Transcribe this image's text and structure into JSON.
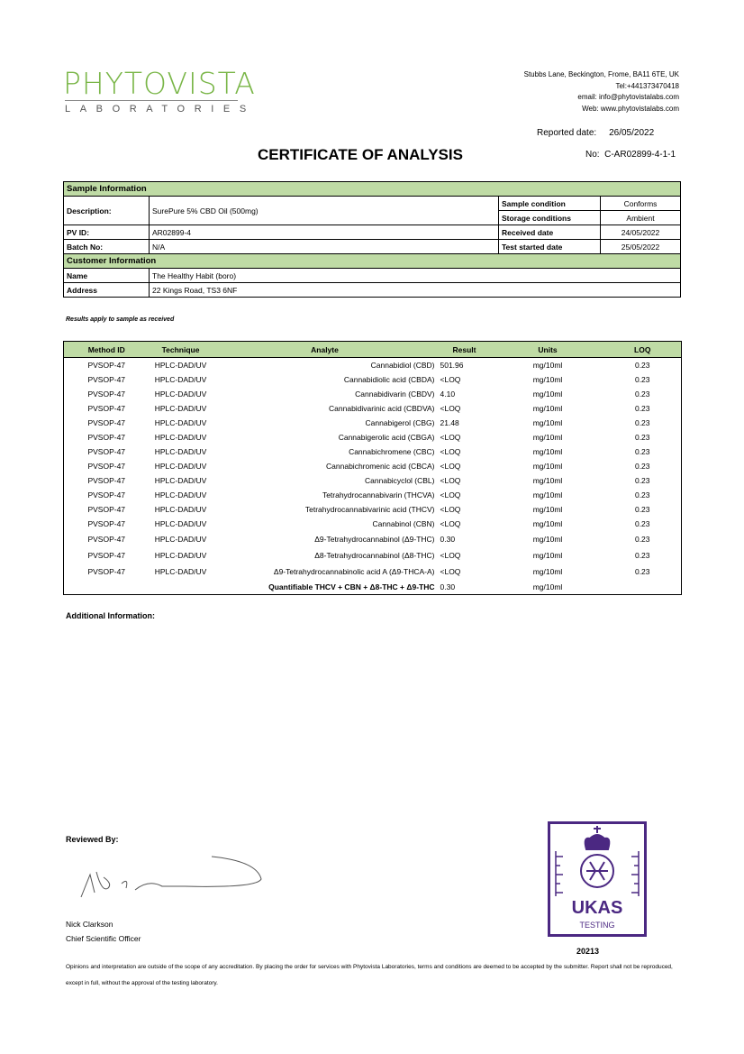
{
  "header": {
    "logo_main": "PHYTOVISTA",
    "logo_sub": "LABORATORIES",
    "address": [
      "Stubbs Lane, Beckington, Frome, BA11 6TE, UK",
      "Tel:+441373470418",
      "email: info@phytovistalabs.com",
      "Web: www.phytovistalabs.com"
    ],
    "reported_label": "Reported date:",
    "reported_date": "26/05/2022",
    "title": "CERTIFICATE OF ANALYSIS",
    "no_label": "No:",
    "no_value": "C-AR02899-4-1-1"
  },
  "sample": {
    "heading": "Sample Information",
    "description_label": "Description:",
    "description": "SurePure 5% CBD Oil (500mg)",
    "pvid_label": "PV ID:",
    "pvid": "AR02899-4",
    "batch_label": "Batch No:",
    "batch": "N/A",
    "condition_label": "Sample condition",
    "condition": "Conforms",
    "storage_label": "Storage conditions",
    "storage": "Ambient",
    "received_label": "Received date",
    "received": "24/05/2022",
    "started_label": "Test started date",
    "started": "25/05/2022"
  },
  "customer": {
    "heading": "Customer Information",
    "name_label": "Name",
    "name": "The Healthy Habit (boro)",
    "address_label": "Address",
    "address": "22 Kings Road, TS3 6NF"
  },
  "note": "Results apply to sample as received",
  "results": {
    "headers": [
      "Method ID",
      "Technique",
      "Analyte",
      "Result",
      "Units",
      "LOQ"
    ],
    "rows": [
      [
        "PVSOP-47",
        "HPLC-DAD/UV",
        "Cannabidiol (CBD)",
        "501.96",
        "mg/10ml",
        "0.23"
      ],
      [
        "PVSOP-47",
        "HPLC-DAD/UV",
        "Cannabidiolic acid (CBDA)",
        "<LOQ",
        "mg/10ml",
        "0.23"
      ],
      [
        "PVSOP-47",
        "HPLC-DAD/UV",
        "Cannabidivarin (CBDV)",
        "4.10",
        "mg/10ml",
        "0.23"
      ],
      [
        "PVSOP-47",
        "HPLC-DAD/UV",
        "Cannabidivarinic acid (CBDVA)",
        "<LOQ",
        "mg/10ml",
        "0.23"
      ],
      [
        "PVSOP-47",
        "HPLC-DAD/UV",
        "Cannabigerol (CBG)",
        "21.48",
        "mg/10ml",
        "0.23"
      ],
      [
        "PVSOP-47",
        "HPLC-DAD/UV",
        "Cannabigerolic acid (CBGA)",
        "<LOQ",
        "mg/10ml",
        "0.23"
      ],
      [
        "PVSOP-47",
        "HPLC-DAD/UV",
        "Cannabichromene (CBC)",
        "<LOQ",
        "mg/10ml",
        "0.23"
      ],
      [
        "PVSOP-47",
        "HPLC-DAD/UV",
        "Cannabichromenic acid (CBCA)",
        "<LOQ",
        "mg/10ml",
        "0.23"
      ],
      [
        "PVSOP-47",
        "HPLC-DAD/UV",
        "Cannabicyclol (CBL)",
        "<LOQ",
        "mg/10ml",
        "0.23"
      ],
      [
        "PVSOP-47",
        "HPLC-DAD/UV",
        "Tetrahydrocannabivarin (THCVA)",
        "<LOQ",
        "mg/10ml",
        "0.23"
      ],
      [
        "PVSOP-47",
        "HPLC-DAD/UV",
        "Tetrahydrocannabivarinic acid (THCV)",
        "<LOQ",
        "mg/10ml",
        "0.23"
      ],
      [
        "PVSOP-47",
        "HPLC-DAD/UV",
        "Cannabinol (CBN)",
        "<LOQ",
        "mg/10ml",
        "0.23"
      ],
      [
        "PVSOP-47",
        "HPLC-DAD/UV",
        "Δ9-Tetrahydrocannabinol (Δ9-THC)",
        "0.30",
        "mg/10ml",
        "0.23"
      ],
      [
        "PVSOP-47",
        "HPLC-DAD/UV",
        "Δ8-Tetrahydrocannabinol (Δ8-THC)",
        "<LOQ",
        "mg/10ml",
        "0.23"
      ],
      [
        "PVSOP-47",
        "HPLC-DAD/UV",
        "Δ9-Tetrahydrocannabinolic acid A (Δ9-THCA-A)",
        "<LOQ",
        "mg/10ml",
        "0.23"
      ]
    ],
    "total_label": "Quantifiable THCV + CBN + Δ8-THC + Δ9-THC",
    "total_result": "0.30",
    "total_units": "mg/10ml"
  },
  "additional_label": "Additional Information:",
  "reviewed_label": "Reviewed By:",
  "reviewer_name": "Nick Clarkson",
  "reviewer_title": "Chief Scientific Officer",
  "ukas": {
    "text": "UKAS",
    "sub": "TESTING",
    "number": "20213",
    "color": "#4b2882"
  },
  "footer": "Opinions and interpretation are outside of the scope of any accreditation. By placing the order for services with Phytovista Laboratories, terms and conditions are deemed to be accepted by the submitter. Report shall not be reproduced, except in full, without the approval of the testing laboratory.",
  "colors": {
    "brand_green": "#7ab648",
    "header_fill": "#bfdba5"
  }
}
